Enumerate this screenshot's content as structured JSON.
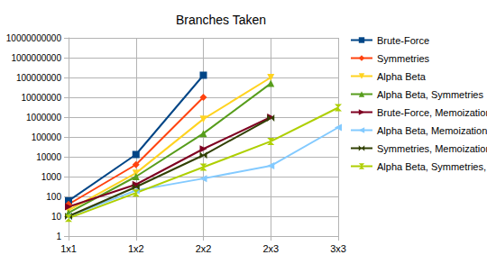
{
  "chart_data": {
    "type": "line",
    "title": "Branches Taken",
    "categories": [
      "1x1",
      "1x2",
      "2x2",
      "2x3",
      "3x3"
    ],
    "log": "y",
    "grid": true,
    "legend": "right",
    "ylim": [
      1,
      10000000000
    ],
    "yticks": [
      1,
      10,
      100,
      1000,
      10000,
      100000,
      1000000,
      10000000,
      100000000,
      1000000000,
      10000000000
    ],
    "series": [
      {
        "name": "Brute-Force",
        "color": "#004586",
        "marker": "square",
        "values": [
          60,
          13000,
          130000000,
          null,
          null
        ]
      },
      {
        "name": "Symmetries",
        "color": "#ff420e",
        "marker": "diamond",
        "values": [
          40,
          4000,
          10000000,
          null,
          null
        ]
      },
      {
        "name": "Alpha Beta",
        "color": "#ffd320",
        "marker": "triangle_down",
        "values": [
          20,
          1500,
          800000,
          100000000,
          null
        ]
      },
      {
        "name": "Alpha Beta, Symmetries",
        "color": "#579d1c",
        "marker": "triangle_up",
        "values": [
          15,
          1000,
          150000,
          50000000,
          null
        ]
      },
      {
        "name": "Brute-Force, Memoization",
        "color": "#7e0021",
        "marker": "triangle_right",
        "values": [
          30,
          400,
          25000,
          1000000,
          null
        ]
      },
      {
        "name": "Alpha Beta, Memoization",
        "color": "#83caff",
        "marker": "triangle_left",
        "values": [
          10,
          200,
          800,
          3500,
          300000
        ]
      },
      {
        "name": "Symmetries, Memoization",
        "color": "#314004",
        "marker": "bowtie",
        "values": [
          10,
          300,
          12000,
          900000,
          null
        ]
      },
      {
        "name": "Alpha Beta, Symmetries, Memoization",
        "color": "#aecf00",
        "marker": "hourglass",
        "values": [
          8,
          150,
          3000,
          60000,
          3000000
        ]
      }
    ]
  }
}
